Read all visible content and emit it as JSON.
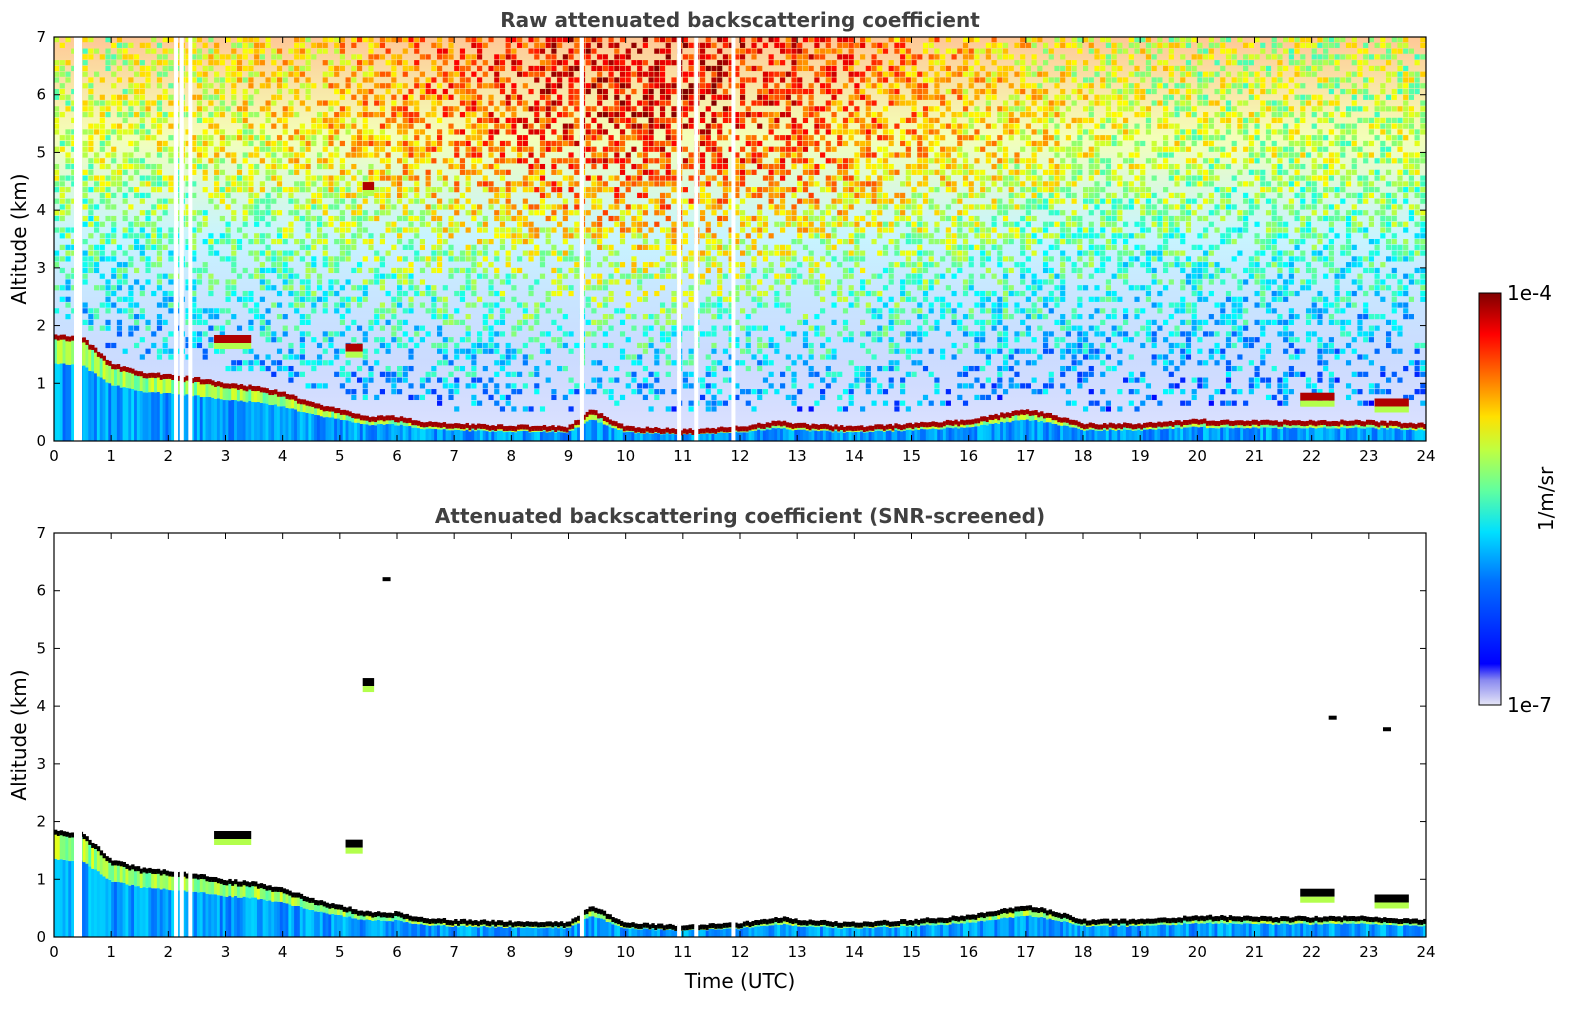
{
  "chart_data": [
    {
      "type": "heatmap",
      "title": "Raw attenuated backscattering coefficient",
      "xlabel": "",
      "ylabel": "Altitude (km)",
      "xlim": [
        0,
        24
      ],
      "ylim": [
        0,
        7
      ],
      "xticks": [
        0,
        1,
        2,
        3,
        4,
        5,
        6,
        7,
        8,
        9,
        10,
        11,
        12,
        13,
        14,
        15,
        16,
        17,
        18,
        19,
        20,
        21,
        22,
        23,
        24
      ],
      "yticks": [
        0,
        1,
        2,
        3,
        4,
        5,
        6,
        7
      ],
      "colormap": "jet",
      "log_scale": true,
      "grid": false,
      "layer_top_km": [
        [
          0,
          1.8
        ],
        [
          0.5,
          1.75
        ],
        [
          1,
          1.3
        ],
        [
          1.5,
          1.15
        ],
        [
          2,
          1.1
        ],
        [
          2.5,
          1.05
        ],
        [
          3,
          0.95
        ],
        [
          3.5,
          0.9
        ],
        [
          4,
          0.8
        ],
        [
          4.5,
          0.62
        ],
        [
          5,
          0.5
        ],
        [
          5.5,
          0.38
        ],
        [
          6,
          0.38
        ],
        [
          6.5,
          0.28
        ],
        [
          7,
          0.25
        ],
        [
          8,
          0.22
        ],
        [
          9,
          0.2
        ],
        [
          9.4,
          0.5
        ],
        [
          10,
          0.2
        ],
        [
          11,
          0.15
        ],
        [
          12,
          0.2
        ],
        [
          12.7,
          0.3
        ],
        [
          13,
          0.25
        ],
        [
          14,
          0.2
        ],
        [
          15,
          0.25
        ],
        [
          16,
          0.32
        ],
        [
          17,
          0.5
        ],
        [
          17.5,
          0.4
        ],
        [
          18,
          0.25
        ],
        [
          19,
          0.25
        ],
        [
          20,
          0.32
        ],
        [
          21,
          0.3
        ],
        [
          22,
          0.3
        ],
        [
          23,
          0.3
        ],
        [
          24,
          0.25
        ]
      ],
      "elevated_layers": [
        {
          "x": [
            2.8,
            3.45
          ],
          "alt_km": 1.75
        },
        {
          "x": [
            5.1,
            5.4
          ],
          "alt_km": 1.6
        },
        {
          "x": [
            5.4,
            5.6
          ],
          "alt_km": 4.4
        },
        {
          "x": [
            21.8,
            22.4
          ],
          "alt_km": 0.75
        },
        {
          "x": [
            23.1,
            23.7
          ],
          "alt_km": 0.65
        }
      ],
      "data_gaps_utc": [
        0.35,
        0.42,
        2.1,
        2.2,
        2.35,
        9.2,
        10.9,
        11.2,
        11.85
      ]
    },
    {
      "type": "heatmap",
      "title": "Attenuated backscattering coefficient (SNR-screened)",
      "xlabel": "Time (UTC)",
      "ylabel": "Altitude (km)",
      "xlim": [
        0,
        24
      ],
      "ylim": [
        0,
        7
      ],
      "xticks": [
        0,
        1,
        2,
        3,
        4,
        5,
        6,
        7,
        8,
        9,
        10,
        11,
        12,
        13,
        14,
        15,
        16,
        17,
        18,
        19,
        20,
        21,
        22,
        23,
        24
      ],
      "yticks": [
        0,
        1,
        2,
        3,
        4,
        5,
        6,
        7
      ],
      "colormap": "jet",
      "log_scale": true,
      "grid": false,
      "isolated_features": [
        {
          "x": 5.5,
          "alt_km": 4.4
        },
        {
          "x": 22.35,
          "alt_km": 3.8
        },
        {
          "x": 23.3,
          "alt_km": 3.6
        },
        {
          "x": 5.8,
          "alt_km": 6.2
        }
      ]
    }
  ],
  "colorbar": {
    "max_label": "1e-4",
    "min_label": "1e-7",
    "unit_label": "1/m/sr",
    "min_value": 1e-07,
    "max_value": 0.0001
  }
}
